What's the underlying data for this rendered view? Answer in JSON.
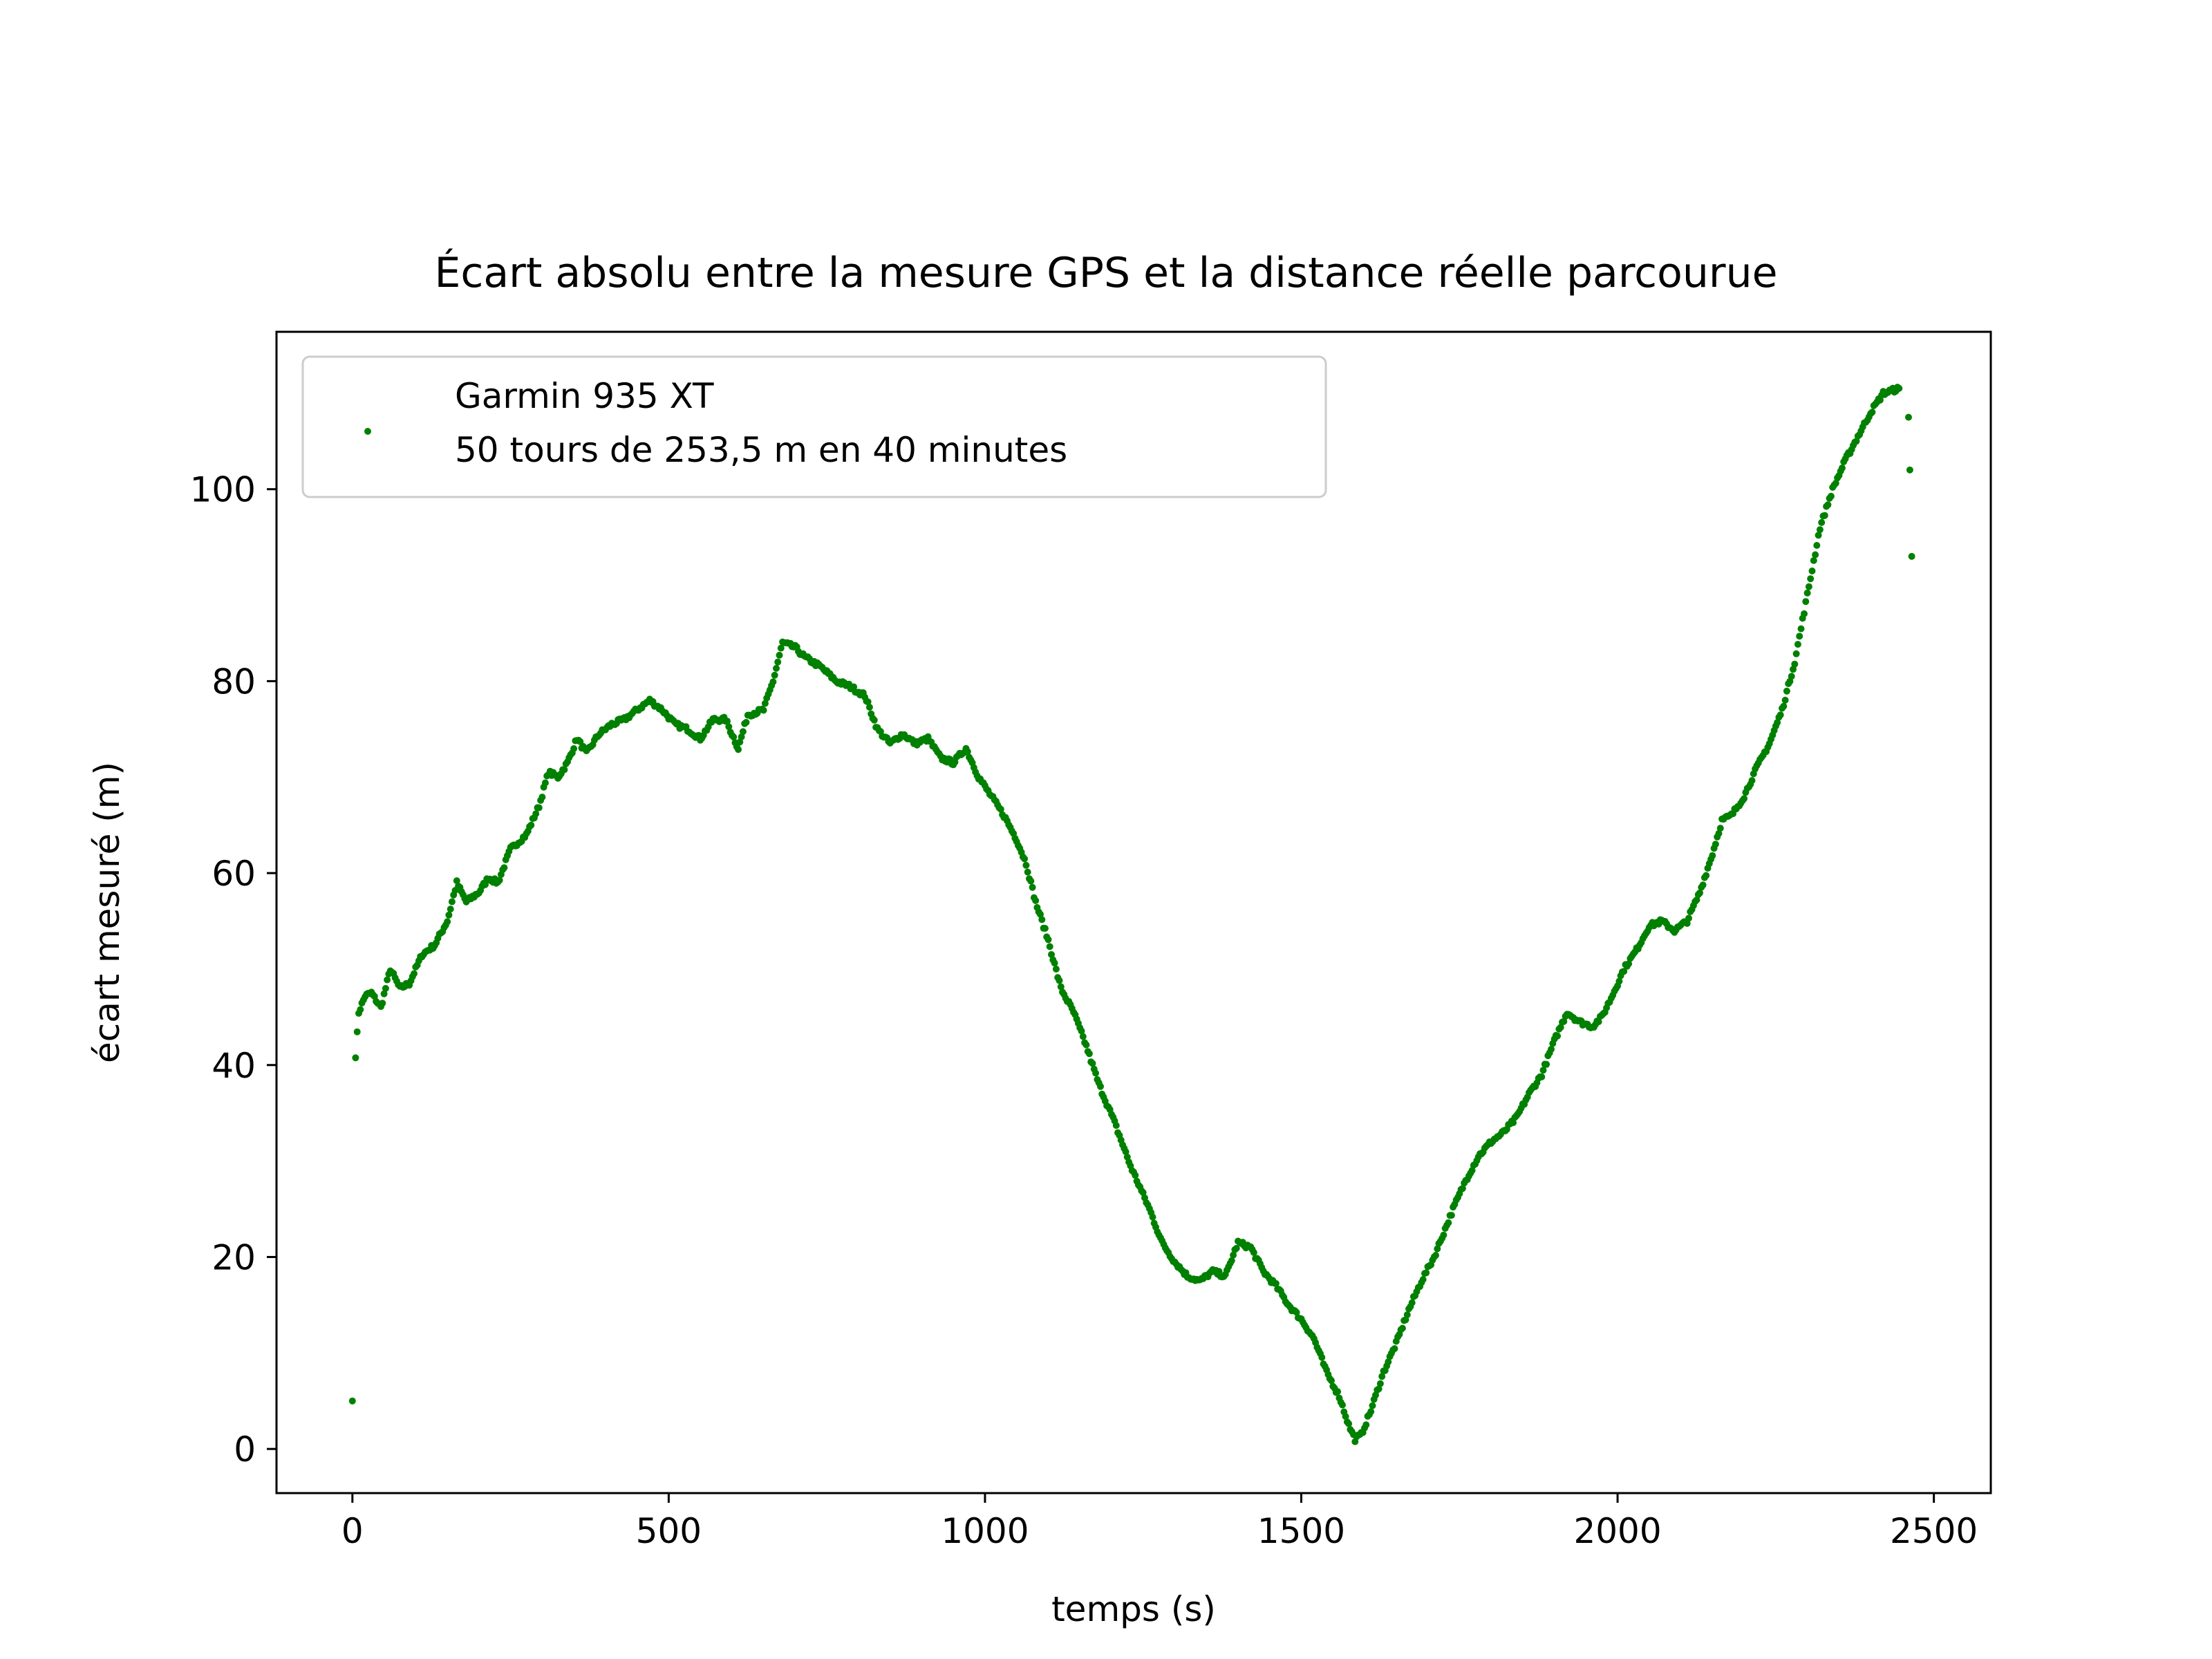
{
  "chart_data": {
    "type": "scatter",
    "title": "Écart absolu entre la mesure GPS et la distance réelle parcourue",
    "xlabel": "temps (s)",
    "ylabel": "écart mesuré (m)",
    "xlim": [
      -120,
      2590
    ],
    "ylim": [
      -4.6,
      116.4
    ],
    "xticks": [
      0,
      500,
      1000,
      1500,
      2000,
      2500
    ],
    "yticks": [
      0,
      20,
      40,
      60,
      80,
      100
    ],
    "xtick_labels": [
      "0",
      "500",
      "1000",
      "1500",
      "2000",
      "2500"
    ],
    "ytick_labels": [
      "0",
      "20",
      "40",
      "60",
      "80",
      "100"
    ],
    "grid": false,
    "legend_position": "upper left",
    "marker_color": "#008000",
    "series": [
      {
        "name": "Garmin 935 XT\n50 tours de 253,5 m en 40 minutes",
        "legend_lines": [
          "Garmin 935 XT",
          "50 tours de 253,5 m en 40 minutes"
        ],
        "anchors": [
          [
            0,
            5
          ],
          [
            5,
            41
          ],
          [
            10,
            45.5
          ],
          [
            20,
            47.2
          ],
          [
            30,
            47.5
          ],
          [
            45,
            46
          ],
          [
            60,
            50
          ],
          [
            75,
            48
          ],
          [
            90,
            48.5
          ],
          [
            110,
            51.5
          ],
          [
            130,
            52.5
          ],
          [
            150,
            55
          ],
          [
            165,
            59
          ],
          [
            180,
            57
          ],
          [
            200,
            58
          ],
          [
            215,
            59.5
          ],
          [
            230,
            59
          ],
          [
            250,
            62.5
          ],
          [
            275,
            64
          ],
          [
            295,
            67
          ],
          [
            310,
            70.5
          ],
          [
            325,
            70
          ],
          [
            340,
            71.5
          ],
          [
            355,
            74
          ],
          [
            370,
            72.5
          ],
          [
            390,
            74.5
          ],
          [
            410,
            75.5
          ],
          [
            430,
            76
          ],
          [
            450,
            77
          ],
          [
            470,
            78
          ],
          [
            490,
            77
          ],
          [
            510,
            75.5
          ],
          [
            530,
            75
          ],
          [
            550,
            74
          ],
          [
            570,
            76
          ],
          [
            590,
            76
          ],
          [
            610,
            73
          ],
          [
            625,
            76.5
          ],
          [
            650,
            77
          ],
          [
            665,
            80
          ],
          [
            680,
            84
          ],
          [
            700,
            83.5
          ],
          [
            715,
            82.5
          ],
          [
            740,
            81.5
          ],
          [
            765,
            80
          ],
          [
            785,
            79.5
          ],
          [
            810,
            78.5
          ],
          [
            830,
            75
          ],
          [
            850,
            73.5
          ],
          [
            870,
            74.5
          ],
          [
            890,
            73.5
          ],
          [
            910,
            74
          ],
          [
            930,
            72
          ],
          [
            950,
            71.5
          ],
          [
            970,
            73
          ],
          [
            990,
            70
          ],
          [
            1010,
            68
          ],
          [
            1030,
            66
          ],
          [
            1050,
            63.5
          ],
          [
            1065,
            61
          ],
          [
            1080,
            57
          ],
          [
            1100,
            53
          ],
          [
            1120,
            48
          ],
          [
            1140,
            45.5
          ],
          [
            1160,
            42
          ],
          [
            1180,
            38
          ],
          [
            1205,
            34
          ],
          [
            1230,
            29.5
          ],
          [
            1260,
            25
          ],
          [
            1280,
            21.5
          ],
          [
            1300,
            19.5
          ],
          [
            1320,
            18
          ],
          [
            1340,
            17.5
          ],
          [
            1360,
            18.5
          ],
          [
            1380,
            18
          ],
          [
            1400,
            21.5
          ],
          [
            1420,
            21
          ],
          [
            1440,
            18.5
          ],
          [
            1460,
            17
          ],
          [
            1480,
            15
          ],
          [
            1500,
            13.5
          ],
          [
            1520,
            11.5
          ],
          [
            1540,
            8
          ],
          [
            1560,
            5.5
          ],
          [
            1575,
            2.5
          ],
          [
            1585,
            1
          ],
          [
            1595,
            1.5
          ],
          [
            1610,
            4
          ],
          [
            1630,
            8
          ],
          [
            1650,
            11
          ],
          [
            1670,
            14.5
          ],
          [
            1690,
            17.5
          ],
          [
            1710,
            20
          ],
          [
            1740,
            25
          ],
          [
            1760,
            28
          ],
          [
            1780,
            30.5
          ],
          [
            1800,
            32
          ],
          [
            1820,
            33
          ],
          [
            1840,
            34.5
          ],
          [
            1860,
            37
          ],
          [
            1880,
            39
          ],
          [
            1900,
            42.5
          ],
          [
            1920,
            45.5
          ],
          [
            1940,
            44.5
          ],
          [
            1960,
            44
          ],
          [
            1975,
            45
          ],
          [
            1990,
            47
          ],
          [
            2010,
            50
          ],
          [
            2030,
            52
          ],
          [
            2050,
            54.5
          ],
          [
            2070,
            55
          ],
          [
            2090,
            54
          ],
          [
            2110,
            55
          ],
          [
            2130,
            58
          ],
          [
            2150,
            62
          ],
          [
            2165,
            65.5
          ],
          [
            2180,
            66
          ],
          [
            2200,
            68
          ],
          [
            2220,
            71
          ],
          [
            2240,
            73.5
          ],
          [
            2260,
            77
          ],
          [
            2280,
            82
          ],
          [
            2300,
            89
          ],
          [
            2320,
            96
          ],
          [
            2340,
            100
          ],
          [
            2360,
            103
          ],
          [
            2380,
            105.5
          ],
          [
            2400,
            108
          ],
          [
            2420,
            110
          ],
          [
            2445,
            110.5
          ]
        ],
        "outliers": [
          [
            2460,
            107.5
          ],
          [
            2462,
            102
          ],
          [
            2465,
            93
          ]
        ]
      }
    ]
  }
}
